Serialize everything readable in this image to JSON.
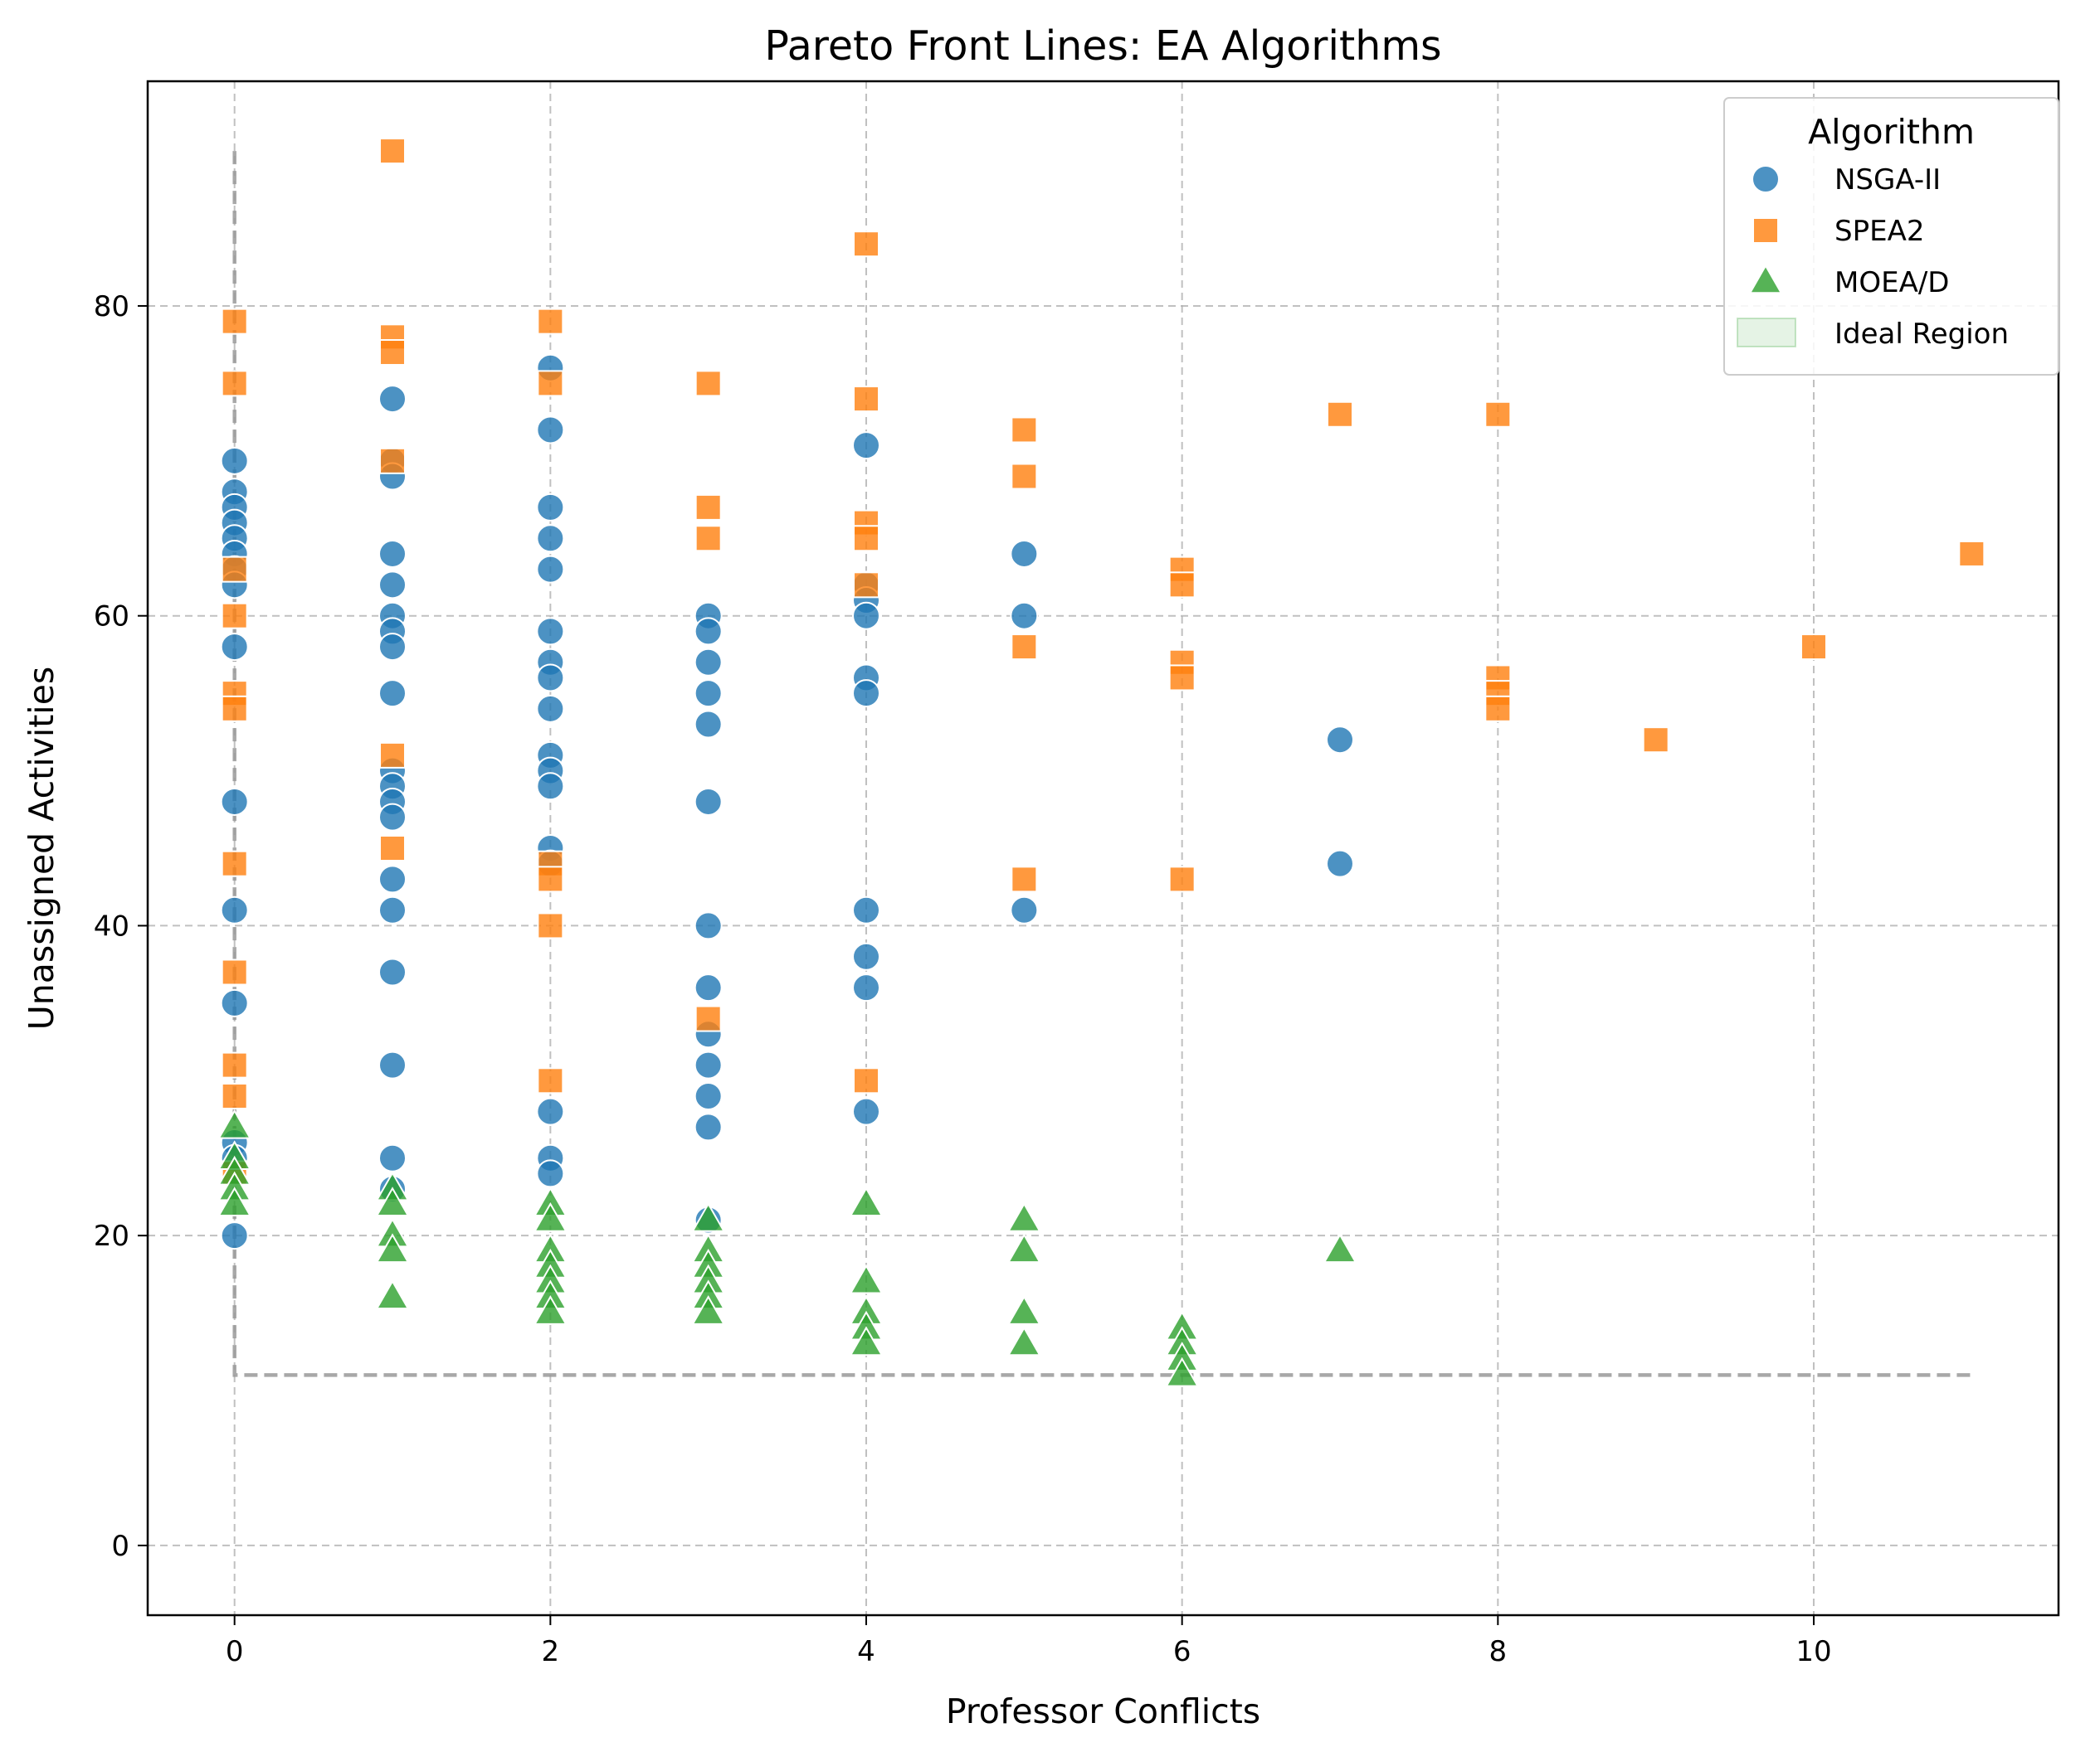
{
  "chart_data": {
    "type": "scatter",
    "title": "Pareto Front Lines: EA Algorithms",
    "xlabel": "Professor Conflicts",
    "ylabel": "Unassigned Activities",
    "xlim": [
      -0.55,
      11.55
    ],
    "ylim": [
      -4.5,
      94.5
    ],
    "xticks": [
      0,
      2,
      4,
      6,
      8,
      10
    ],
    "yticks": [
      0,
      20,
      40,
      60,
      80
    ],
    "grid": true,
    "legend": {
      "title": "Algorithm",
      "placement": "upper right",
      "entries": [
        "NSGA-II",
        "SPEA2",
        "MOEA/D",
        "Ideal Region"
      ]
    },
    "series": [
      {
        "name": "NSGA-II",
        "marker": "circle",
        "color": "#1f77b4",
        "points": [
          [
            0,
            70
          ],
          [
            0,
            68
          ],
          [
            0,
            67
          ],
          [
            0,
            66
          ],
          [
            0,
            65
          ],
          [
            0,
            64
          ],
          [
            0,
            63
          ],
          [
            0,
            62
          ],
          [
            0,
            58
          ],
          [
            0,
            48
          ],
          [
            0,
            41
          ],
          [
            0,
            35
          ],
          [
            0,
            26
          ],
          [
            0,
            25
          ],
          [
            0,
            20
          ],
          [
            1,
            74
          ],
          [
            1,
            70
          ],
          [
            1,
            69
          ],
          [
            1,
            64
          ],
          [
            1,
            62
          ],
          [
            1,
            60
          ],
          [
            1,
            59
          ],
          [
            1,
            58
          ],
          [
            1,
            55
          ],
          [
            1,
            50
          ],
          [
            1,
            49
          ],
          [
            1,
            48
          ],
          [
            1,
            47
          ],
          [
            1,
            43
          ],
          [
            1,
            41
          ],
          [
            1,
            37
          ],
          [
            1,
            31
          ],
          [
            1,
            25
          ],
          [
            1,
            23
          ],
          [
            2,
            76
          ],
          [
            2,
            72
          ],
          [
            2,
            67
          ],
          [
            2,
            65
          ],
          [
            2,
            63
          ],
          [
            2,
            59
          ],
          [
            2,
            57
          ],
          [
            2,
            56
          ],
          [
            2,
            54
          ],
          [
            2,
            51
          ],
          [
            2,
            50
          ],
          [
            2,
            49
          ],
          [
            2,
            45
          ],
          [
            2,
            44
          ],
          [
            2,
            28
          ],
          [
            2,
            25
          ],
          [
            2,
            24
          ],
          [
            3,
            60
          ],
          [
            3,
            59
          ],
          [
            3,
            57
          ],
          [
            3,
            55
          ],
          [
            3,
            53
          ],
          [
            3,
            48
          ],
          [
            3,
            40
          ],
          [
            3,
            36
          ],
          [
            3,
            33
          ],
          [
            3,
            31
          ],
          [
            3,
            29
          ],
          [
            3,
            27
          ],
          [
            3,
            21
          ],
          [
            4,
            71
          ],
          [
            4,
            62
          ],
          [
            4,
            61
          ],
          [
            4,
            60
          ],
          [
            4,
            56
          ],
          [
            4,
            55
          ],
          [
            4,
            41
          ],
          [
            4,
            38
          ],
          [
            4,
            36
          ],
          [
            4,
            28
          ],
          [
            5,
            64
          ],
          [
            5,
            60
          ],
          [
            5,
            41
          ],
          [
            7,
            52
          ],
          [
            7,
            44
          ]
        ]
      },
      {
        "name": "SPEA2",
        "marker": "square",
        "color": "#ff7f0e",
        "points": [
          [
            0,
            79
          ],
          [
            0,
            75
          ],
          [
            0,
            63
          ],
          [
            0,
            60
          ],
          [
            0,
            55
          ],
          [
            0,
            54
          ],
          [
            0,
            44
          ],
          [
            0,
            37
          ],
          [
            0,
            31
          ],
          [
            0,
            29
          ],
          [
            0,
            24
          ],
          [
            1,
            90
          ],
          [
            1,
            78
          ],
          [
            1,
            77
          ],
          [
            1,
            70
          ],
          [
            1,
            51
          ],
          [
            1,
            45
          ],
          [
            2,
            79
          ],
          [
            2,
            75
          ],
          [
            2,
            44
          ],
          [
            2,
            43
          ],
          [
            2,
            40
          ],
          [
            2,
            30
          ],
          [
            3,
            75
          ],
          [
            3,
            67
          ],
          [
            3,
            65
          ],
          [
            3,
            34
          ],
          [
            4,
            84
          ],
          [
            4,
            74
          ],
          [
            4,
            66
          ],
          [
            4,
            65
          ],
          [
            4,
            62
          ],
          [
            4,
            30
          ],
          [
            5,
            72
          ],
          [
            5,
            69
          ],
          [
            5,
            58
          ],
          [
            5,
            43
          ],
          [
            6,
            63
          ],
          [
            6,
            62
          ],
          [
            6,
            57
          ],
          [
            6,
            56
          ],
          [
            6,
            43
          ],
          [
            7,
            73
          ],
          [
            8,
            73
          ],
          [
            8,
            56
          ],
          [
            8,
            55
          ],
          [
            8,
            54
          ],
          [
            9,
            52
          ],
          [
            10,
            58
          ],
          [
            11,
            64
          ]
        ]
      },
      {
        "name": "MOEA/D",
        "marker": "triangle",
        "color": "#2ca02c",
        "points": [
          [
            0,
            27
          ],
          [
            0,
            25
          ],
          [
            0,
            24
          ],
          [
            0,
            23
          ],
          [
            0,
            22
          ],
          [
            1,
            23
          ],
          [
            1,
            22
          ],
          [
            1,
            20
          ],
          [
            1,
            19
          ],
          [
            1,
            16
          ],
          [
            2,
            22
          ],
          [
            2,
            21
          ],
          [
            2,
            19
          ],
          [
            2,
            18
          ],
          [
            2,
            17
          ],
          [
            2,
            16
          ],
          [
            2,
            15
          ],
          [
            3,
            21
          ],
          [
            3,
            19
          ],
          [
            3,
            18
          ],
          [
            3,
            17
          ],
          [
            3,
            16
          ],
          [
            3,
            15
          ],
          [
            4,
            22
          ],
          [
            4,
            17
          ],
          [
            4,
            15
          ],
          [
            4,
            14
          ],
          [
            4,
            13
          ],
          [
            5,
            21
          ],
          [
            5,
            19
          ],
          [
            5,
            15
          ],
          [
            5,
            13
          ],
          [
            6,
            14
          ],
          [
            6,
            13
          ],
          [
            6,
            12
          ],
          [
            6,
            11
          ],
          [
            7,
            19
          ]
        ]
      }
    ],
    "reference_line": {
      "style": "dashed",
      "color": "#999999",
      "points": [
        [
          0,
          90
        ],
        [
          0,
          11
        ],
        [
          11,
          11
        ]
      ]
    },
    "ideal_region": {
      "name": "Ideal Region",
      "color": "#2ca02c",
      "x": [
        0,
        0
      ],
      "y": [
        0,
        11
      ]
    }
  }
}
